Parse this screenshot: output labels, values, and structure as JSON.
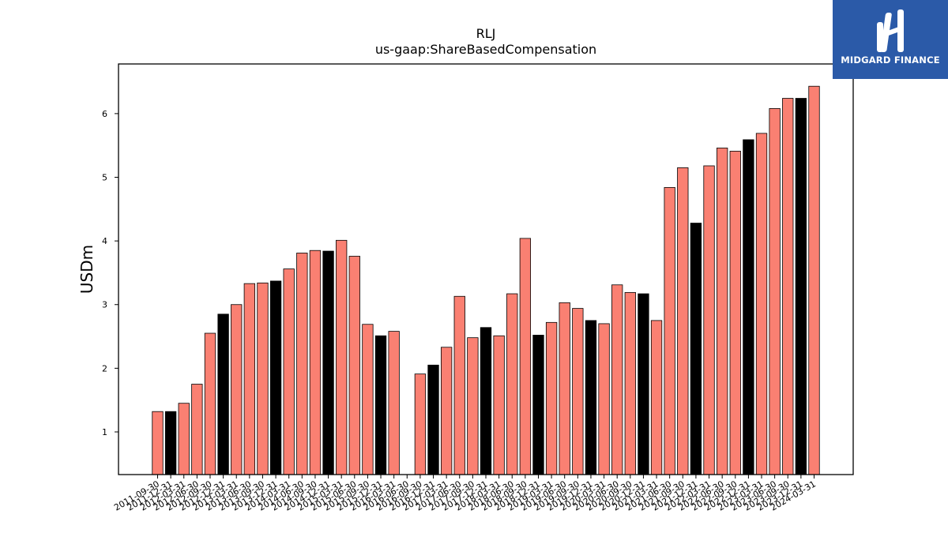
{
  "chart_data": {
    "type": "bar",
    "title": "RLJ",
    "subtitle": "us-gaap:ShareBasedCompensation",
    "xlabel": "",
    "ylabel": "USDm",
    "ylim": [
      0.33,
      6.78
    ],
    "yticks": [
      1,
      2,
      3,
      4,
      5,
      6
    ],
    "grid": false,
    "colors": {
      "default": "#fa8072",
      "highlight": "#000000",
      "edge": "#000000"
    },
    "categories": [
      "2011-09-30",
      "2011-12-31",
      "2012-03-31",
      "2012-06-30",
      "2012-09-30",
      "2012-12-31",
      "2013-03-31",
      "2013-06-30",
      "2013-09-30",
      "2013-12-31",
      "2014-03-31",
      "2014-06-30",
      "2014-09-30",
      "2014-12-31",
      "2015-03-31",
      "2015-06-30",
      "2015-09-30",
      "2015-12-31",
      "2016-03-31",
      "2016-06-30",
      "2016-09-30",
      "2016-12-31",
      "2017-03-31",
      "2017-06-30",
      "2017-09-30",
      "2017-12-31",
      "2018-03-31",
      "2018-06-30",
      "2018-09-30",
      "2018-12-31",
      "2019-03-31",
      "2019-06-30",
      "2019-09-30",
      "2019-12-31",
      "2020-03-31",
      "2020-06-30",
      "2020-09-30",
      "2020-12-31",
      "2021-03-31",
      "2021-06-30",
      "2021-09-30",
      "2021-12-31",
      "2022-03-31",
      "2022-06-30",
      "2022-09-30",
      "2022-12-31",
      "2023-03-31",
      "2023-06-30",
      "2023-09-30",
      "2023-12-31",
      "2024-03-31"
    ],
    "values": [
      1.32,
      1.32,
      1.45,
      1.75,
      2.55,
      2.85,
      3.0,
      3.33,
      3.34,
      3.37,
      3.56,
      3.81,
      3.85,
      3.84,
      4.01,
      3.76,
      2.69,
      2.51,
      2.58,
      null,
      1.91,
      2.05,
      2.33,
      3.13,
      2.48,
      2.64,
      2.51,
      3.17,
      4.04,
      2.52,
      2.72,
      3.03,
      2.94,
      2.75,
      2.7,
      3.31,
      3.19,
      3.17,
      2.75,
      4.84,
      5.15,
      4.28,
      5.18,
      5.46,
      5.41,
      5.59,
      5.69,
      6.08,
      6.24,
      6.24,
      6.43
    ],
    "highlight": [
      false,
      true,
      false,
      false,
      false,
      true,
      false,
      false,
      false,
      true,
      false,
      false,
      false,
      true,
      false,
      false,
      false,
      true,
      false,
      false,
      false,
      true,
      false,
      false,
      false,
      true,
      false,
      false,
      false,
      true,
      false,
      false,
      false,
      true,
      false,
      false,
      false,
      true,
      false,
      false,
      false,
      true,
      false,
      false,
      false,
      true,
      false,
      false,
      false,
      true,
      false
    ]
  },
  "logo": {
    "text": "MIDGARD FINANCE",
    "background": "#2b5aa8"
  }
}
